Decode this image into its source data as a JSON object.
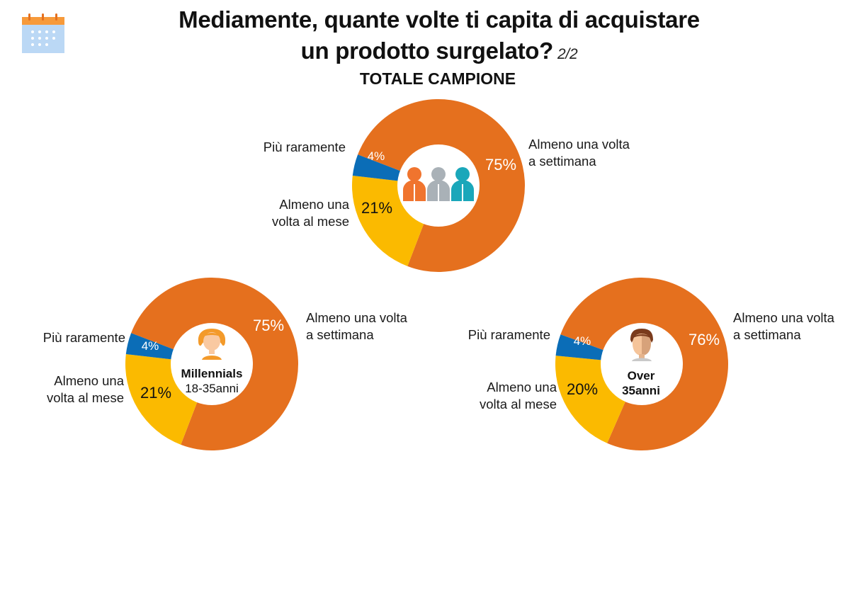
{
  "header": {
    "title_line1": "Mediamente, quante volte ti capita di acquistare",
    "title_line2": "un prodotto surgelato?",
    "page": "2/2"
  },
  "icons": {
    "top_left": "calendar-icon",
    "total": "people-group-icon",
    "millennials": "young-person-icon",
    "over35": "adult-man-icon"
  },
  "colors": {
    "weekly": "#E5701E",
    "monthly": "#FBBA00",
    "rarely": "#0B6DB7"
  },
  "chart_data": [
    {
      "type": "pie",
      "title": "TOTALE CAMPIONE",
      "categories": [
        "Almeno una volta a settimana",
        "Almeno una volta al mese",
        "Più raramente"
      ],
      "values": [
        75,
        21,
        4
      ],
      "value_labels": [
        "75%",
        "21%",
        "4%"
      ],
      "labels": {
        "weekly": [
          "Almeno una volta",
          "a settimana"
        ],
        "monthly": [
          "Almeno una",
          "volta al mese"
        ],
        "rarely": [
          "Più raramente"
        ]
      }
    },
    {
      "type": "pie",
      "center_label": [
        "Millennials",
        "18-35anni"
      ],
      "categories": [
        "Almeno una volta a settimana",
        "Almeno una volta al mese",
        "Più raramente"
      ],
      "values": [
        75,
        21,
        4
      ],
      "value_labels": [
        "75%",
        "21%",
        "4%"
      ],
      "labels": {
        "weekly": [
          "Almeno una volta",
          "a settimana"
        ],
        "monthly": [
          "Almeno una",
          "volta al mese"
        ],
        "rarely": [
          "Più raramente"
        ]
      }
    },
    {
      "type": "pie",
      "center_label": [
        "Over",
        "35anni"
      ],
      "categories": [
        "Almeno una volta a settimana",
        "Almeno una volta al mese",
        "Più raramente"
      ],
      "values": [
        76,
        20,
        4
      ],
      "value_labels": [
        "76%",
        "20%",
        "4%"
      ],
      "labels": {
        "weekly": [
          "Almeno una volta",
          "a settimana"
        ],
        "monthly": [
          "Almeno una",
          "volta al mese"
        ],
        "rarely": [
          "Più raramente"
        ]
      }
    }
  ]
}
